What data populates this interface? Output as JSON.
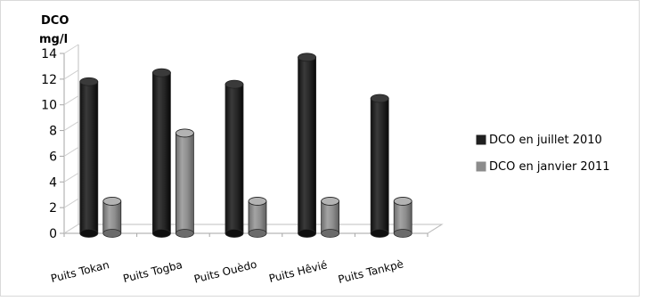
{
  "chart_data": {
    "type": "bar",
    "title": "",
    "ylabel_lines": [
      "DCO",
      "mg/l"
    ],
    "xlabel": "",
    "categories": [
      "Puits Tokan",
      "Puits Togba",
      "Puits Ouèdo",
      "Puits Hêvié",
      "Puits Tankpè"
    ],
    "series": [
      {
        "name": "DCO en juillet 2010",
        "values": [
          11.8,
          12.5,
          11.6,
          13.7,
          10.5
        ],
        "color": "#1f1f1f"
      },
      {
        "name": "DCO en janvier 2011",
        "values": [
          2.5,
          7.8,
          2.5,
          2.5,
          2.5
        ],
        "color": "#8c8c8c"
      }
    ],
    "ylim": [
      0,
      14
    ],
    "yticks": [
      0,
      2,
      4,
      6,
      8,
      10,
      12,
      14
    ],
    "grid": false,
    "legend_position": "right",
    "bar_style": "3d-cylinder"
  }
}
